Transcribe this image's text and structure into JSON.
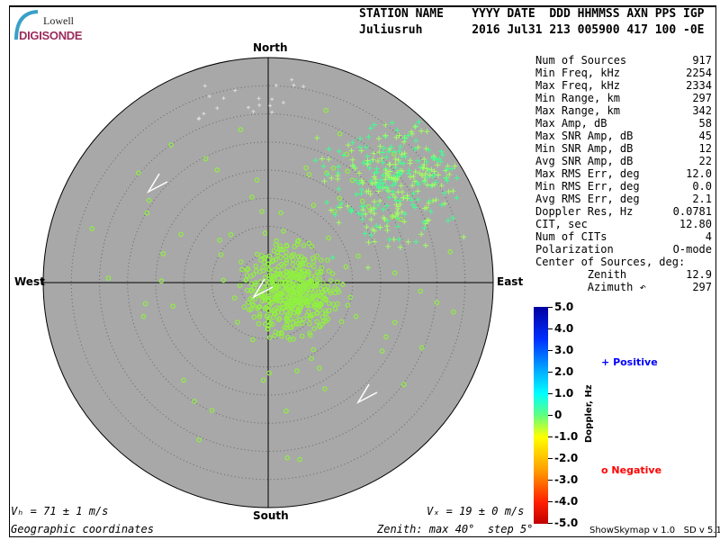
{
  "logo": {
    "line1": "Lowell",
    "line2": "DIGISONDE"
  },
  "header": {
    "labels": "STATION NAME    YYYY DATE  DDD HHMMSS AXN PPS IGP",
    "values": "Juliusruh       2016 Jul31 213 005900 417 100 -0E"
  },
  "directions": {
    "north": "North",
    "south": "South",
    "east": "East",
    "west": "West"
  },
  "stats": [
    {
      "label": "Num of Sources",
      "value": "917"
    },
    {
      "label": "Min Freq, kHz",
      "value": "2254"
    },
    {
      "label": "Max Freq, kHz",
      "value": "2334"
    },
    {
      "label": "Min Range, km",
      "value": "297"
    },
    {
      "label": "Max Range, km",
      "value": "342"
    },
    {
      "label": "Max Amp, dB",
      "value": "58"
    },
    {
      "label": "Max SNR Amp, dB",
      "value": "45"
    },
    {
      "label": "Min SNR Amp, dB",
      "value": "12"
    },
    {
      "label": "Avg SNR Amp, dB",
      "value": "22"
    },
    {
      "label": "Max RMS Err, deg",
      "value": "12.0"
    },
    {
      "label": "Min RMS Err, deg",
      "value": "0.0"
    },
    {
      "label": "Avg RMS Err, deg",
      "value": "2.1"
    },
    {
      "label": "Doppler Res, Hz",
      "value": "0.0781"
    },
    {
      "label": "CIT, sec",
      "value": "12.80"
    },
    {
      "label": "Num of CITs",
      "value": "4"
    },
    {
      "label": "Polarization",
      "value": "O-mode"
    },
    {
      "label": "Center of Sources, deg:",
      "value": ""
    },
    {
      "label": "        Zenith",
      "value": "12.9"
    },
    {
      "label": "        Azimuth ↶",
      "value": "297"
    }
  ],
  "colorbar": {
    "label": "Doppler, Hz",
    "ticks": [
      "5.0",
      "4.0",
      "3.0",
      "2.0",
      "1.0",
      "0",
      "-1.0",
      "-2.0",
      "-3.0",
      "-4.0",
      "-5.0"
    ]
  },
  "legend": {
    "positive_symbol": "+",
    "positive": "Positive",
    "negative_symbol": "o",
    "negative": "Negative",
    "positive_color": "#0000ff",
    "negative_color": "#ff0000"
  },
  "footer": {
    "vh": "Vₕ = 71 ± 1 m/s",
    "vz": "Vₓ = 19 ± 0 m/s",
    "coords": "Geographic coordinates",
    "zenith": "Zenith: max 40°  step 5°",
    "version": "ShowSkymap v 1.0   SD v 5.1"
  },
  "skymap": {
    "zenith_max_deg": 40,
    "zenith_step_deg": 5,
    "background": "#a8a8a8"
  }
}
